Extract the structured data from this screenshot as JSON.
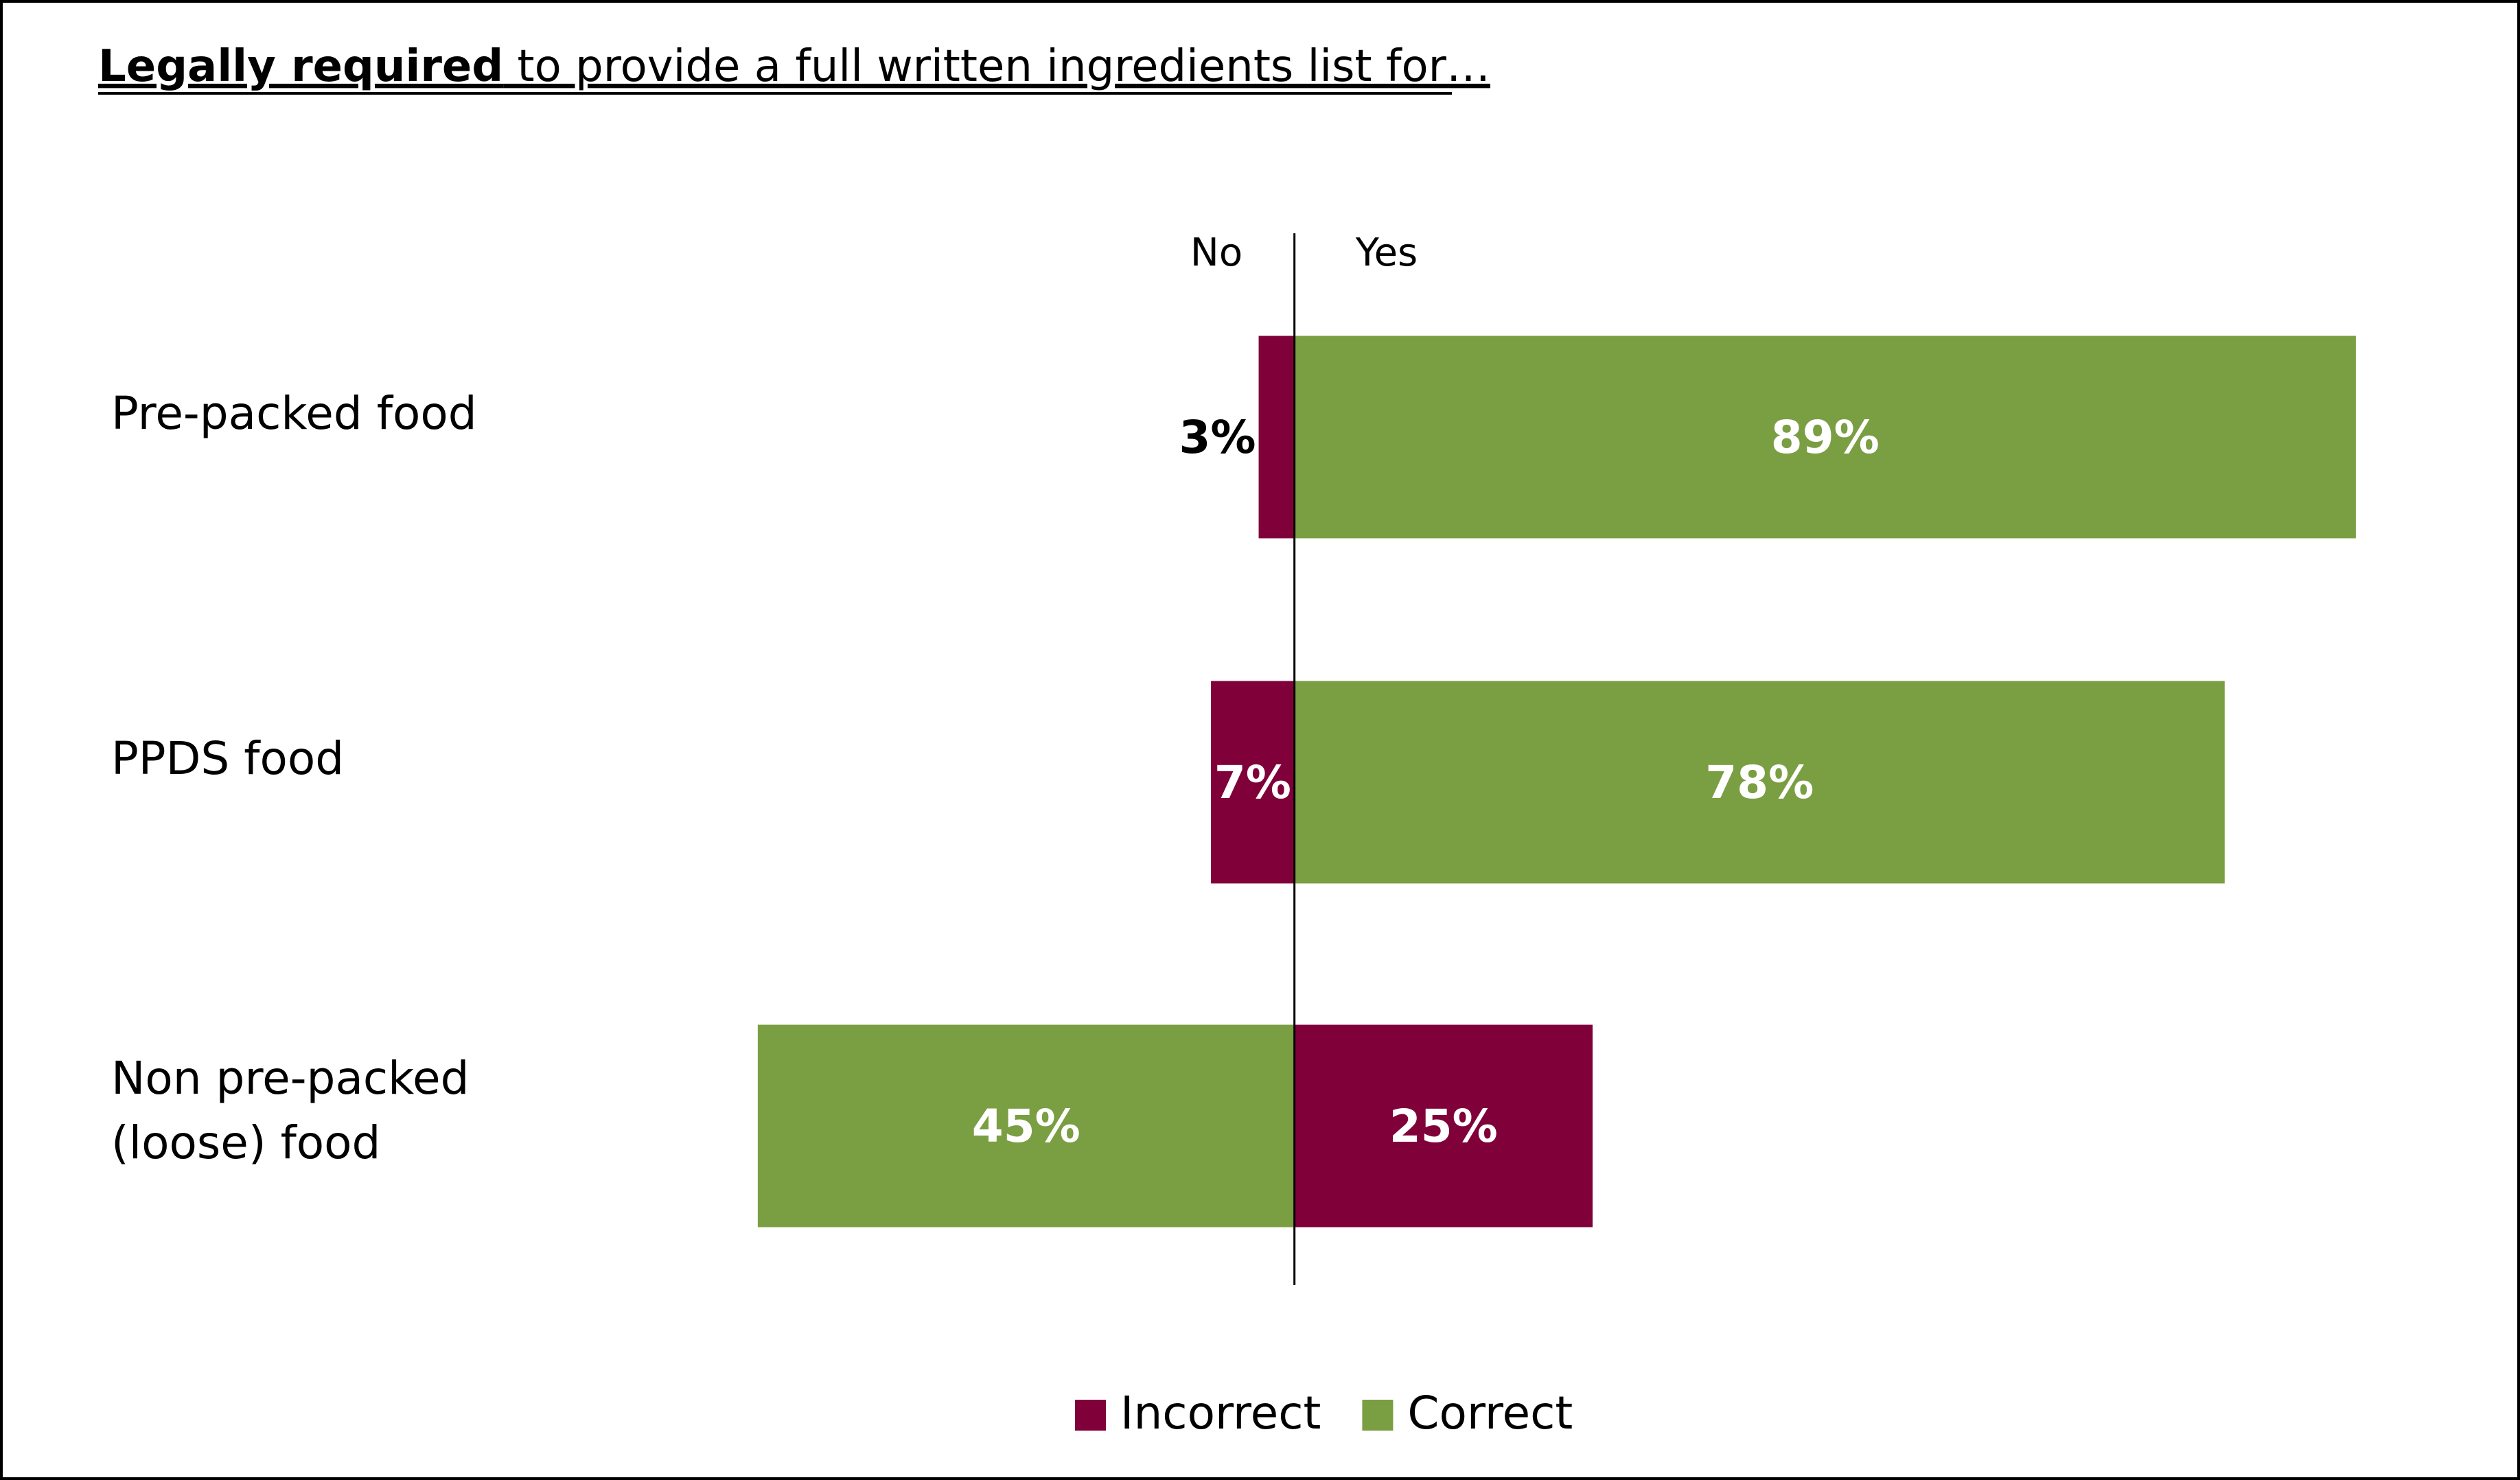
{
  "chart_data": {
    "type": "diverging-bar",
    "title_parts": [
      "Legally required",
      " to provide a full written ingredients list for…"
    ],
    "side_labels": [
      "No",
      "Yes"
    ],
    "categories": [
      "Pre-packed food",
      "PPDS food",
      "Non pre-packed\n(loose) food"
    ],
    "correct_side": [
      "right",
      "right",
      "left"
    ],
    "series": [
      {
        "name": "Incorrect",
        "color": "#80003a",
        "values": [
          3,
          7,
          25
        ],
        "value_labels": [
          "3%",
          "7%",
          "25%"
        ]
      },
      {
        "name": "Correct",
        "color": "#7a9e42",
        "values": [
          89,
          78,
          45
        ],
        "value_labels": [
          "89%",
          "78%",
          "45%"
        ]
      }
    ],
    "xlim": [
      -50,
      100
    ],
    "legend": "bottom"
  }
}
